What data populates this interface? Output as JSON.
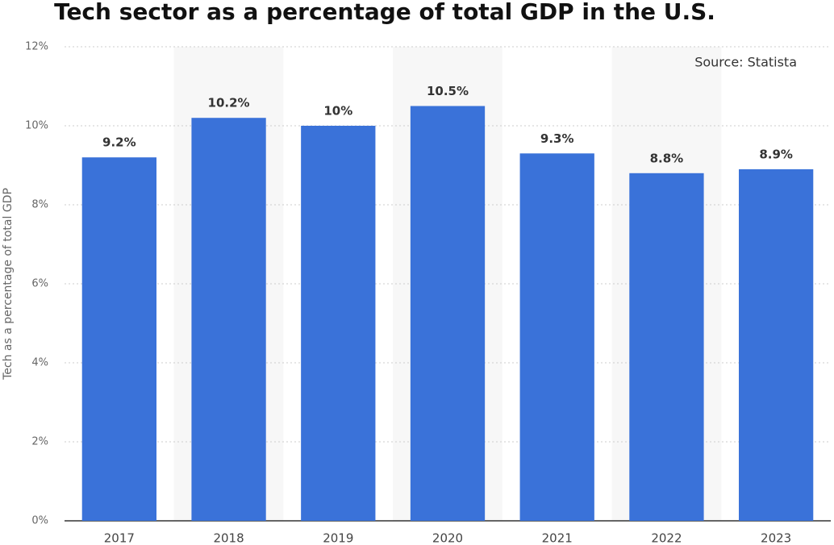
{
  "chart_data": {
    "type": "bar",
    "title": "Tech sector as a percentage of total GDP in the U.S.",
    "y_label": "Tech as a percentage of total GDP",
    "annotation": "Source: Statista",
    "categories": [
      "2017",
      "2018",
      "2019",
      "2020",
      "2021",
      "2022",
      "2023"
    ],
    "values": [
      9.2,
      10.2,
      10,
      10.5,
      9.3,
      8.8,
      8.9
    ],
    "value_labels": [
      "9.2%",
      "10.2%",
      "10%",
      "10.5%",
      "9.3%",
      "8.8%",
      "8.9%"
    ],
    "color": "#3a72d9",
    "ylim": [
      0,
      12
    ],
    "yticks": [
      {
        "value": 0,
        "label": "0%"
      },
      {
        "value": 2,
        "label": "2%"
      },
      {
        "value": 4,
        "label": "4%"
      },
      {
        "value": 6,
        "label": "6%"
      },
      {
        "value": 8,
        "label": "8%"
      },
      {
        "value": 10,
        "label": "10%"
      },
      {
        "value": 12,
        "label": "12%"
      }
    ],
    "grid": true
  }
}
